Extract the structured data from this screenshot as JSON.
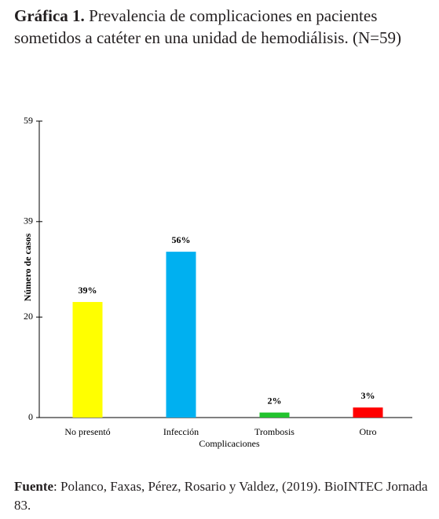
{
  "document": {
    "title_bold": "Gráfica 1.",
    "title": "Prevalencia de complicaciones en pacientes sometidos a catéter en una unidad de hemodiálisis. (N=59)",
    "footer_bold": "Fuente",
    "footer": ": Polanco, Faxas, Pérez, Rosario y Valdez, (2019). BioINTEC Jornada 83."
  },
  "chart_data": {
    "type": "bar",
    "x_label": "Complicaciones",
    "y_label": "Número de casos",
    "categories": [
      "No presentó",
      "Infección",
      "Trombosis",
      "Otro"
    ],
    "values": [
      23,
      33,
      1,
      2
    ],
    "value_labels": [
      "39%",
      "56%",
      "2%",
      "3%"
    ],
    "colors": [
      "#ffff00",
      "#00b0f0",
      "#22c32e",
      "#ff0000"
    ],
    "ylim": [
      0,
      59
    ],
    "yticks": [
      0,
      20,
      39,
      59
    ],
    "grid": false
  }
}
